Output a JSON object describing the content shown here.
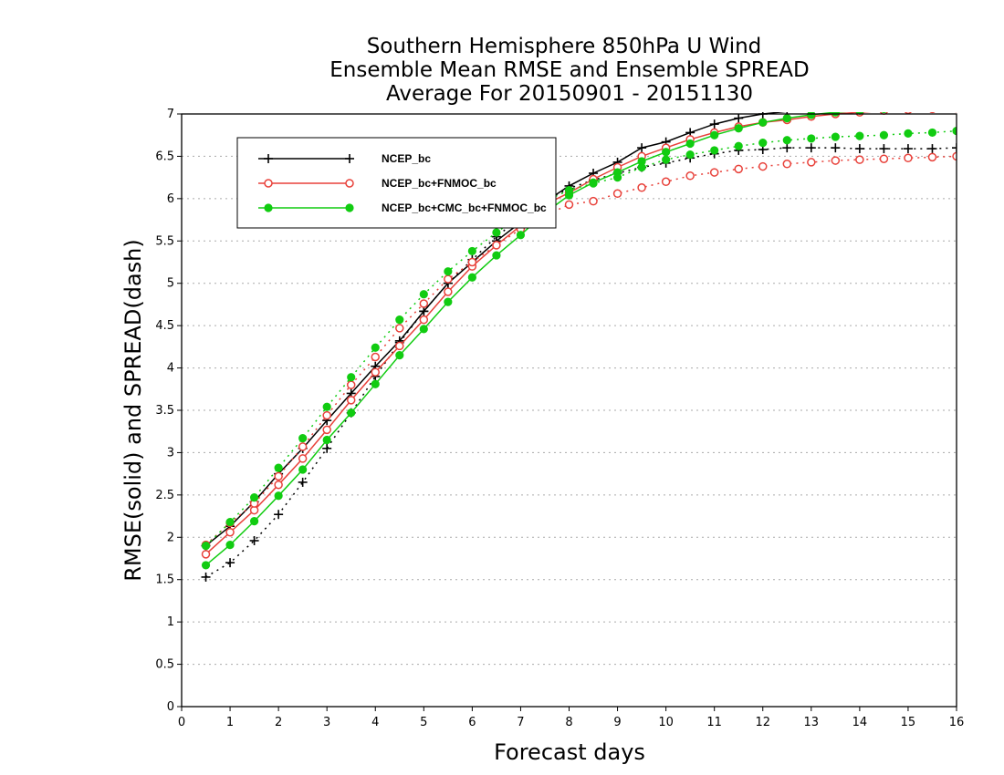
{
  "chart_data": {
    "type": "line",
    "title": [
      "Southern Hemisphere 850hPa U Wind",
      "Ensemble Mean RMSE and Ensemble SPREAD",
      "Average For 20150901 - 20151130"
    ],
    "xlabel": "Forecast days",
    "ylabel": "RMSE(solid) and SPREAD(dash)",
    "xlim": [
      0,
      16
    ],
    "ylim": [
      0,
      7
    ],
    "xticks": [
      "0",
      "1",
      "2",
      "3",
      "4",
      "5",
      "6",
      "7",
      "8",
      "9",
      "10",
      "11",
      "12",
      "13",
      "14",
      "15",
      "16"
    ],
    "yticks": [
      "0",
      "0.5",
      "1",
      "1.5",
      "2",
      "2.5",
      "3",
      "3.5",
      "4",
      "4.5",
      "5",
      "5.5",
      "6",
      "6.5",
      "7"
    ],
    "grid": "horizontal dotted",
    "legend_position": "top-left",
    "x": [
      0.5,
      1,
      1.5,
      2,
      2.5,
      3,
      3.5,
      4,
      4.5,
      5,
      5.5,
      6,
      6.5,
      7,
      7.5,
      8,
      8.5,
      9,
      9.5,
      10,
      10.5,
      11,
      11.5,
      12,
      12.5,
      13,
      13.5,
      14,
      14.5,
      15,
      15.5,
      16
    ],
    "series": [
      {
        "name": "NCEP_bc",
        "style": "solid",
        "marker": "plus",
        "color": "#000000",
        "values": [
          1.9,
          2.13,
          2.42,
          2.75,
          3.05,
          3.38,
          3.7,
          4.02,
          4.32,
          4.67,
          5.0,
          5.25,
          5.5,
          5.72,
          5.96,
          6.15,
          6.3,
          6.43,
          6.6,
          6.67,
          6.78,
          6.88,
          6.95,
          7.0,
          7.03,
          7.06,
          7.08,
          7.1,
          7.11,
          7.12,
          7.13,
          7.14
        ]
      },
      {
        "style": "dash",
        "marker": "plus",
        "color": "#000000",
        "values": [
          1.53,
          1.7,
          1.96,
          2.27,
          2.65,
          3.05,
          3.47,
          3.9,
          4.3,
          4.67,
          5.0,
          5.28,
          5.55,
          5.78,
          5.98,
          6.12,
          6.22,
          6.3,
          6.37,
          6.42,
          6.48,
          6.53,
          6.57,
          6.58,
          6.6,
          6.6,
          6.6,
          6.59,
          6.59,
          6.59,
          6.59,
          6.6
        ]
      },
      {
        "name": "NCEP_bc+FNMOC_bc",
        "style": "solid",
        "marker": "circle-open",
        "color": "#e8413a",
        "values": [
          1.8,
          2.06,
          2.32,
          2.62,
          2.93,
          3.27,
          3.62,
          3.95,
          4.26,
          4.57,
          4.9,
          5.2,
          5.45,
          5.68,
          5.93,
          6.07,
          6.23,
          6.37,
          6.5,
          6.6,
          6.7,
          6.78,
          6.85,
          6.9,
          6.93,
          6.97,
          7.0,
          7.02,
          7.04,
          7.05,
          7.06,
          7.07
        ]
      },
      {
        "style": "dash",
        "marker": "circle-open",
        "color": "#e8413a",
        "values": [
          1.91,
          2.17,
          2.4,
          2.72,
          3.07,
          3.44,
          3.8,
          4.13,
          4.47,
          4.76,
          5.05,
          5.25,
          5.45,
          5.64,
          5.8,
          5.93,
          5.97,
          6.06,
          6.13,
          6.2,
          6.27,
          6.31,
          6.35,
          6.38,
          6.41,
          6.43,
          6.45,
          6.46,
          6.47,
          6.48,
          6.49,
          6.5
        ]
      },
      {
        "name": "NCEP_bc+CMC_bc+FNMOC_bc",
        "style": "solid",
        "marker": "circle-filled",
        "color": "#11cc11",
        "values": [
          1.67,
          1.91,
          2.19,
          2.49,
          2.8,
          3.15,
          3.47,
          3.81,
          4.15,
          4.46,
          4.78,
          5.07,
          5.33,
          5.57,
          5.83,
          6.04,
          6.19,
          6.31,
          6.44,
          6.55,
          6.65,
          6.75,
          6.83,
          6.9,
          6.95,
          6.99,
          7.02,
          7.04,
          7.06,
          7.08,
          7.09,
          7.1
        ]
      },
      {
        "style": "dash",
        "marker": "circle-filled",
        "color": "#11cc11",
        "values": [
          1.9,
          2.18,
          2.47,
          2.82,
          3.17,
          3.54,
          3.89,
          4.24,
          4.57,
          4.87,
          5.14,
          5.38,
          5.6,
          5.8,
          5.97,
          6.1,
          6.18,
          6.25,
          6.37,
          6.46,
          6.52,
          6.57,
          6.62,
          6.66,
          6.69,
          6.71,
          6.73,
          6.74,
          6.75,
          6.77,
          6.78,
          6.8
        ]
      }
    ]
  }
}
